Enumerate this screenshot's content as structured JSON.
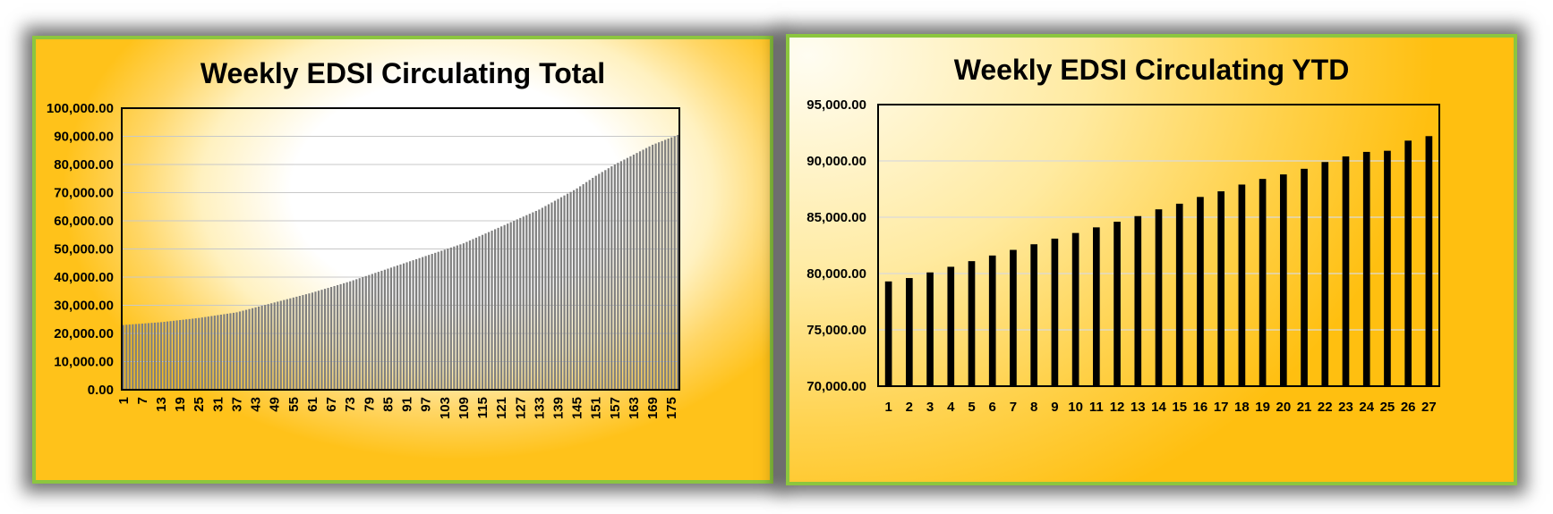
{
  "chart_data": [
    {
      "type": "bar",
      "title": "Weekly EDSI Circulating Total",
      "xlabel": "",
      "ylabel": "",
      "ylim": [
        0,
        100000
      ],
      "y_ticks": [
        "0.00",
        "10,000.00",
        "20,000.00",
        "30,000.00",
        "40,000.00",
        "50,000.00",
        "60,000.00",
        "70,000.00",
        "80,000.00",
        "90,000.00",
        "100,000.00"
      ],
      "x_start": 1,
      "x_count": 177,
      "x_tick_labels": [
        "1",
        "7",
        "13",
        "19",
        "25",
        "31",
        "37",
        "43",
        "49",
        "55",
        "61",
        "67",
        "73",
        "79",
        "85",
        "91",
        "97",
        "103",
        "109",
        "115",
        "121",
        "127",
        "133",
        "139",
        "145",
        "151",
        "157",
        "163",
        "169",
        "175"
      ],
      "value_anchors": [
        [
          1,
          23000
        ],
        [
          13,
          24000
        ],
        [
          25,
          25500
        ],
        [
          37,
          27500
        ],
        [
          49,
          31000
        ],
        [
          61,
          34500
        ],
        [
          73,
          38500
        ],
        [
          85,
          43000
        ],
        [
          97,
          47500
        ],
        [
          109,
          52000
        ],
        [
          121,
          58000
        ],
        [
          133,
          64000
        ],
        [
          145,
          71500
        ],
        [
          151,
          76000
        ],
        [
          157,
          80000
        ],
        [
          163,
          83500
        ],
        [
          169,
          87000
        ],
        [
          177,
          90500
        ]
      ],
      "grid": true,
      "bar_color": "#7f7f7f",
      "legend": "none"
    },
    {
      "type": "bar",
      "title": "Weekly EDSI Circulating YTD",
      "xlabel": "",
      "ylabel": "",
      "ylim": [
        70000,
        95000
      ],
      "y_ticks": [
        "70,000.00",
        "75,000.00",
        "80,000.00",
        "85,000.00",
        "90,000.00",
        "95,000.00"
      ],
      "categories": [
        "1",
        "2",
        "3",
        "4",
        "5",
        "6",
        "7",
        "8",
        "9",
        "10",
        "11",
        "12",
        "13",
        "14",
        "15",
        "16",
        "17",
        "18",
        "19",
        "20",
        "21",
        "22",
        "23",
        "24",
        "25",
        "26",
        "27"
      ],
      "values": [
        79300,
        79600,
        80100,
        80600,
        81100,
        81600,
        82100,
        82600,
        83100,
        83600,
        84100,
        84600,
        85100,
        85700,
        86200,
        86800,
        87300,
        87900,
        88400,
        88800,
        89300,
        89900,
        90400,
        90800,
        90900,
        91800,
        92200
      ],
      "grid": true,
      "bar_color": "#000000",
      "legend": "none"
    }
  ]
}
